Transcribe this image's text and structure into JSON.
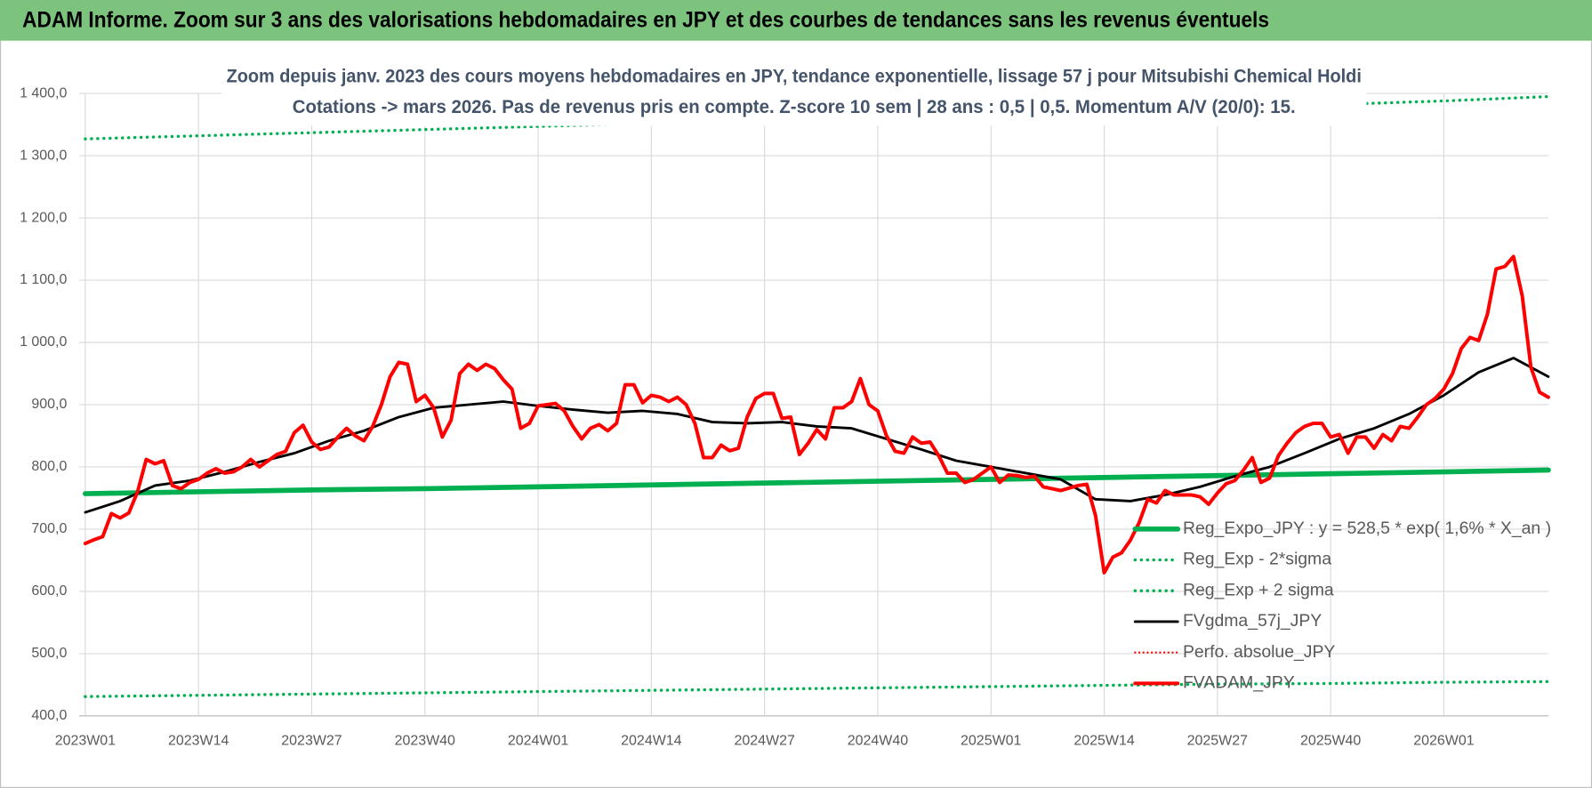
{
  "banner": "ADAM Informe. Zoom sur 3 ans des valorisations hebdomadaires en JPY et des courbes de tendances sans les revenus éventuels",
  "chart_data": {
    "type": "line",
    "title": "Zoom depuis janv. 2023 des cours moyens hebdomadaires en JPY, tendance exponentielle, lissage 57 j pour Mitsubishi Chemical Holdi",
    "subtitle": "Cotations -> mars 2026. Pas de revenus pris en compte. Z-score 10 sem | 28 ans : 0,5 | 0,5. Momentum A/V (20/0): 15.",
    "xlim": [
      0,
      168
    ],
    "xticks": [
      {
        "value": 0,
        "label": "2023W01"
      },
      {
        "value": 13,
        "label": "2023W14"
      },
      {
        "value": 26,
        "label": "2023W27"
      },
      {
        "value": 39,
        "label": "2023W40"
      },
      {
        "value": 52,
        "label": "2024W01"
      },
      {
        "value": 65,
        "label": "2024W14"
      },
      {
        "value": 78,
        "label": "2024W27"
      },
      {
        "value": 91,
        "label": "2024W40"
      },
      {
        "value": 104,
        "label": "2025W01"
      },
      {
        "value": 117,
        "label": "2025W14"
      },
      {
        "value": 130,
        "label": "2025W27"
      },
      {
        "value": 143,
        "label": "2025W40"
      },
      {
        "value": 156,
        "label": "2026W01"
      }
    ],
    "ylim": [
      400,
      1400
    ],
    "yticks": [
      {
        "value": 400,
        "label": "400,0"
      },
      {
        "value": 500,
        "label": "500,0"
      },
      {
        "value": 600,
        "label": "600,0"
      },
      {
        "value": 700,
        "label": "700,0"
      },
      {
        "value": 800,
        "label": "800,0"
      },
      {
        "value": 900,
        "label": "900,0"
      },
      {
        "value": 1000,
        "label": "1 000,0"
      },
      {
        "value": 1100,
        "label": "1 100,0"
      },
      {
        "value": 1200,
        "label": "1 200,0"
      },
      {
        "value": 1300,
        "label": "1 300,0"
      },
      {
        "value": 1400,
        "label": "1 400,0"
      }
    ],
    "grid": true,
    "legend": "right",
    "series": [
      {
        "name": "Reg_Expo_JPY : y = 528,5 * exp( 1,6% *  X_an )",
        "color": "#00b050",
        "style": "solid",
        "line_width": 5,
        "x": [
          0,
          13,
          26,
          39,
          52,
          65,
          78,
          91,
          104,
          117,
          130,
          143,
          156,
          168
        ],
        "values": [
          757,
          760,
          763,
          765,
          768,
          771,
          774,
          777,
          780,
          783,
          786,
          789,
          792,
          795
        ]
      },
      {
        "name": "Reg_Exp - 2*sigma",
        "color": "#00b050",
        "style": "dotted",
        "line_width": 3,
        "x": [
          0,
          13,
          26,
          39,
          52,
          65,
          78,
          91,
          104,
          117,
          130,
          143,
          156,
          168
        ],
        "values": [
          431,
          433,
          435,
          437,
          439,
          441,
          443,
          445,
          447,
          449,
          451,
          452,
          454,
          455
        ]
      },
      {
        "name": "Reg_Exp + 2 sigma",
        "color": "#00b050",
        "style": "dotted",
        "line_width": 3,
        "x": [
          0,
          13,
          26,
          39,
          52,
          65,
          78,
          91,
          104,
          117,
          130,
          143,
          156,
          168
        ],
        "values": [
          1327,
          1332,
          1337,
          1342,
          1347,
          1352,
          1357,
          1362,
          1367,
          1372,
          1377,
          1382,
          1388,
          1395
        ]
      },
      {
        "name": "FVgdma_57j_JPY",
        "color": "#000000",
        "style": "solid",
        "line_width": 2.5,
        "x": [
          0,
          4,
          8,
          12,
          16,
          20,
          24,
          28,
          32,
          36,
          40,
          44,
          48,
          52,
          56,
          60,
          64,
          68,
          72,
          76,
          80,
          84,
          88,
          92,
          96,
          100,
          104,
          108,
          112,
          116,
          120,
          124,
          128,
          132,
          136,
          140,
          144,
          148,
          152,
          156,
          160,
          164,
          168
        ],
        "values": [
          727,
          745,
          770,
          778,
          792,
          808,
          822,
          842,
          858,
          880,
          895,
          900,
          905,
          898,
          892,
          887,
          890,
          885,
          872,
          870,
          872,
          865,
          862,
          845,
          828,
          810,
          800,
          790,
          780,
          748,
          745,
          755,
          768,
          785,
          800,
          822,
          845,
          862,
          885,
          915,
          952,
          975,
          945
        ]
      },
      {
        "name": "Perfo. absolue_JPY",
        "color": "#ff0000",
        "style": "dotted",
        "line_width": 2,
        "x": [],
        "values": []
      },
      {
        "name": "FVADAM_JPY",
        "color": "#ff0000",
        "style": "solid",
        "line_width": 3.5,
        "x": [
          0,
          1,
          2,
          3,
          4,
          5,
          6,
          7,
          8,
          9,
          10,
          11,
          12,
          13,
          14,
          15,
          16,
          17,
          18,
          19,
          20,
          21,
          22,
          23,
          24,
          25,
          26,
          27,
          28,
          29,
          30,
          31,
          32,
          33,
          34,
          35,
          36,
          37,
          38,
          39,
          40,
          41,
          42,
          43,
          44,
          45,
          46,
          47,
          48,
          49,
          50,
          51,
          52,
          53,
          54,
          55,
          56,
          57,
          58,
          59,
          60,
          61,
          62,
          63,
          64,
          65,
          66,
          67,
          68,
          69,
          70,
          71,
          72,
          73,
          74,
          75,
          76,
          77,
          78,
          79,
          80,
          81,
          82,
          83,
          84,
          85,
          86,
          87,
          88,
          89,
          90,
          91,
          92,
          93,
          94,
          95,
          96,
          97,
          98,
          99,
          100,
          101,
          102,
          103,
          104,
          105,
          106,
          107,
          108,
          109,
          110,
          111,
          112,
          113,
          114,
          115,
          116,
          117,
          118,
          119,
          120,
          121,
          122,
          123,
          124,
          125,
          126,
          127,
          128,
          129,
          130,
          131,
          132,
          133,
          134,
          135,
          136,
          137,
          138,
          139,
          140,
          141,
          142,
          143,
          144,
          145,
          146,
          147,
          148,
          149,
          150,
          151,
          152,
          153,
          154,
          155,
          156,
          157,
          158,
          159,
          160,
          161,
          162,
          163,
          164,
          165,
          166,
          167,
          168
        ],
        "values": [
          677,
          683,
          688,
          725,
          718,
          726,
          760,
          812,
          805,
          810,
          770,
          765,
          775,
          780,
          790,
          797,
          790,
          792,
          800,
          812,
          800,
          810,
          820,
          825,
          855,
          867,
          840,
          828,
          832,
          848,
          862,
          850,
          842,
          865,
          900,
          945,
          968,
          965,
          905,
          915,
          895,
          848,
          875,
          950,
          965,
          955,
          965,
          958,
          940,
          925,
          862,
          870,
          898,
          900,
          902,
          890,
          865,
          845,
          862,
          868,
          858,
          870,
          932,
          932,
          903,
          915,
          912,
          905,
          912,
          900,
          870,
          815,
          815,
          835,
          826,
          830,
          880,
          910,
          918,
          918,
          878,
          880,
          820,
          838,
          860,
          845,
          895,
          895,
          905,
          942,
          900,
          890,
          850,
          825,
          822,
          848,
          838,
          840,
          818,
          790,
          790,
          775,
          780,
          790,
          800,
          775,
          787,
          786,
          783,
          785,
          768,
          765,
          762,
          766,
          770,
          772,
          722,
          630,
          655,
          662,
          682,
          710,
          748,
          742,
          762,
          755,
          755,
          755,
          752,
          740,
          758,
          773,
          778,
          795,
          815,
          775,
          782,
          818,
          838,
          855,
          865,
          870,
          870,
          848,
          852,
          822,
          848,
          848,
          830,
          852,
          842,
          865,
          862,
          880,
          900,
          910,
          925,
          950,
          990,
          1008,
          1003,
          1045,
          1118,
          1122,
          1138,
          1075,
          960,
          920,
          912
        ]
      }
    ]
  }
}
